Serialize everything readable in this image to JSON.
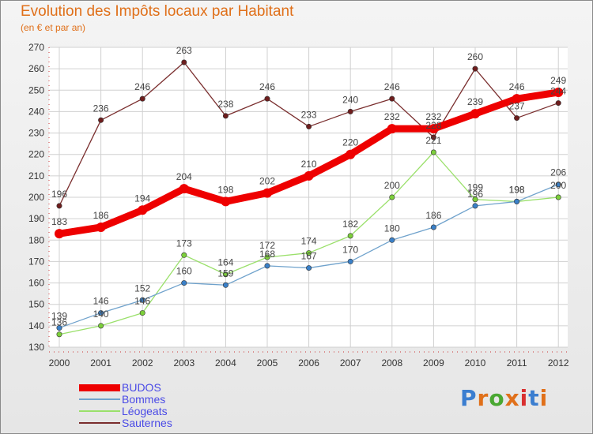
{
  "title": "Evolution des Impôts locaux par Habitant",
  "subtitle": "(en € et par an)",
  "logo": {
    "text": "Proxiti",
    "colors": [
      "#3b7ed0",
      "#e0701a",
      "#4aa832",
      "#e0701a",
      "#d93030",
      "#3b7ed0",
      "#e0701a"
    ]
  },
  "chart_data": {
    "type": "line",
    "x": [
      "2000",
      "2001",
      "2002",
      "2003",
      "2004",
      "2005",
      "2006",
      "2007",
      "2008",
      "2009",
      "2010",
      "2011",
      "2012"
    ],
    "ylim": [
      130,
      270
    ],
    "yticks": [
      130,
      140,
      150,
      160,
      170,
      180,
      190,
      200,
      210,
      220,
      230,
      240,
      250,
      260,
      270
    ],
    "grid": true,
    "legend_position": "bottom-left",
    "series": [
      {
        "name": "BUDOS",
        "color": "#ee0000",
        "text_color": "#4a4ae6",
        "width": 9,
        "values": [
          183,
          186,
          194,
          204,
          198,
          202,
          210,
          220,
          232,
          232,
          239,
          246,
          249
        ]
      },
      {
        "name": "Bommes",
        "color": "#6fa2cc",
        "text_color": "#4a4ae6",
        "width": 1.3,
        "values": [
          139,
          146,
          152,
          160,
          159,
          168,
          167,
          170,
          180,
          186,
          196,
          198,
          206
        ]
      },
      {
        "name": "Léogeats",
        "color": "#9ae06a",
        "text_color": "#4a4ae6",
        "width": 1.3,
        "values": [
          136,
          140,
          146,
          173,
          164,
          172,
          174,
          182,
          200,
          221,
          199,
          198,
          200
        ]
      },
      {
        "name": "Sauternes",
        "color": "#7a2e2e",
        "text_color": "#4a4ae6",
        "width": 1.3,
        "values": [
          196,
          236,
          246,
          263,
          238,
          246,
          233,
          240,
          246,
          228,
          260,
          237,
          244
        ]
      }
    ]
  }
}
